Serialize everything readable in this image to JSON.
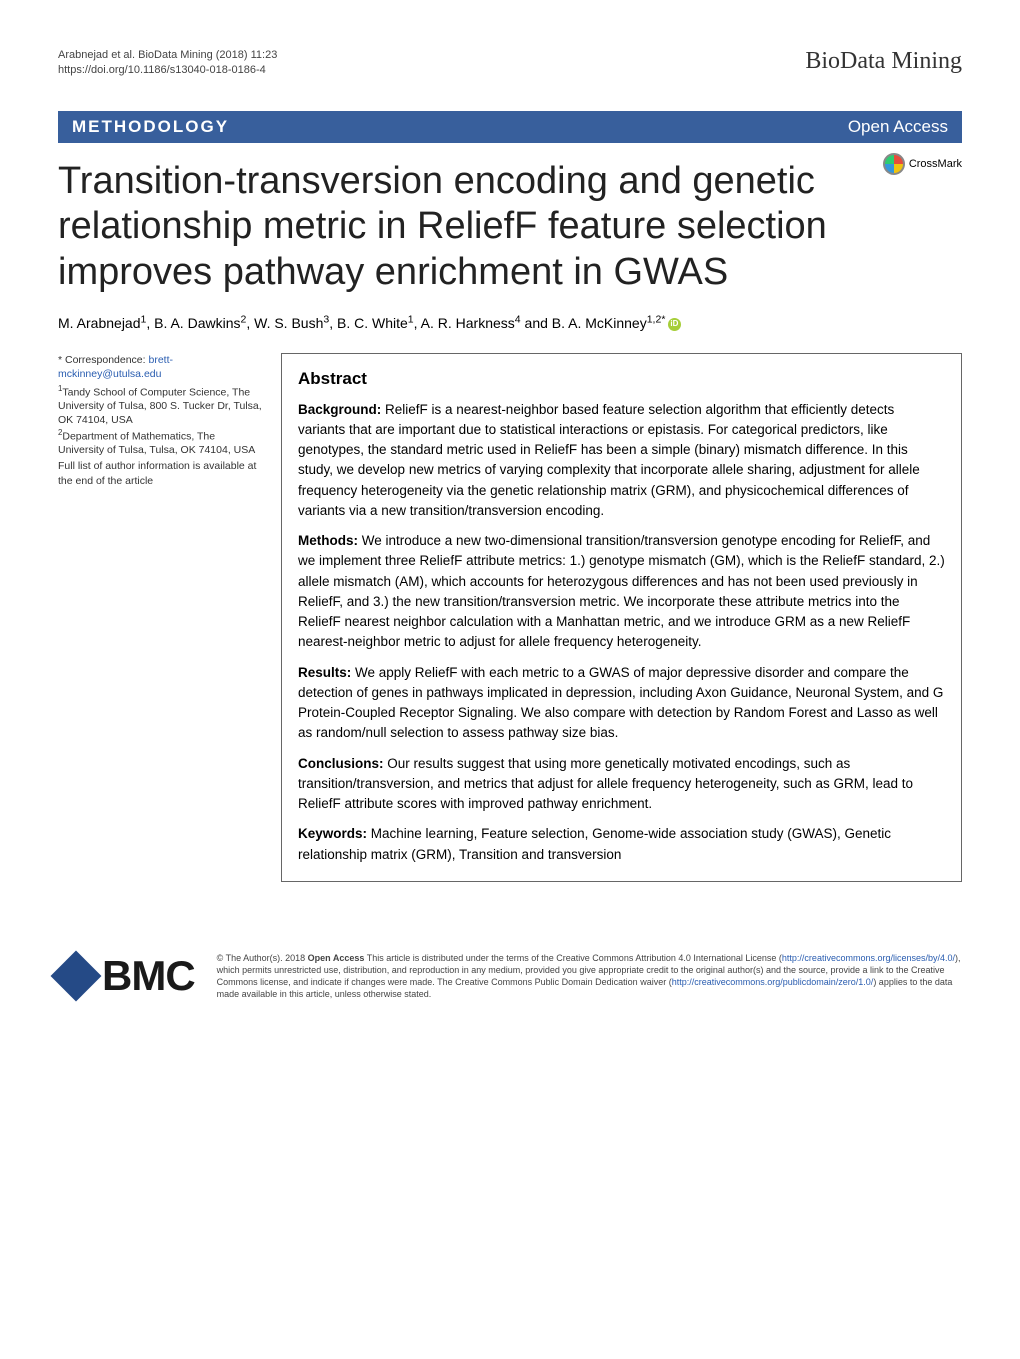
{
  "meta": {
    "citation": "Arabnejad et al. BioData Mining          (2018) 11:23",
    "doi": "https://doi.org/10.1186/s13040-018-0186-4",
    "journal": "BioData Mining"
  },
  "banner": {
    "left": "METHODOLOGY",
    "right": "Open Access"
  },
  "crossmark": "CrossMark",
  "title": "Transition-transversion encoding and genetic relationship metric in ReliefF feature selection improves pathway enrichment in GWAS",
  "authors_html": "M. Arabnejad<sup>1</sup>, B. A. Dawkins<sup>2</sup>, W. S. Bush<sup>3</sup>, B. C. White<sup>1</sup>, A. R. Harkness<sup>4</sup> and B. A. McKinney<sup>1,2*</sup>",
  "leftcol": {
    "correspondence_label": "* Correspondence: ",
    "correspondence_email": "brett-mckinney@utulsa.edu",
    "aff1": "Tandy School of Computer Science, The University of Tulsa, 800 S. Tucker Dr, Tulsa, OK 74104, USA",
    "aff2": "Department of Mathematics, The University of Tulsa, Tulsa, OK 74104, USA",
    "fulllist": "Full list of author information is available at the end of the article"
  },
  "abstract": {
    "heading": "Abstract",
    "background_label": "Background:",
    "background": " ReliefF is a nearest-neighbor based feature selection algorithm that efficiently detects variants that are important due to statistical interactions or epistasis. For categorical predictors, like genotypes, the standard metric used in ReliefF has been a simple (binary) mismatch difference. In this study, we develop new metrics of varying complexity that incorporate allele sharing, adjustment for allele frequency heterogeneity via the genetic relationship matrix (GRM), and physicochemical differences of variants via a new transition/transversion encoding.",
    "methods_label": "Methods:",
    "methods": " We introduce a new two-dimensional transition/transversion genotype encoding for ReliefF, and we implement three ReliefF attribute metrics: 1.) genotype mismatch (GM), which is the ReliefF standard, 2.) allele mismatch (AM), which accounts for heterozygous differences and has not been used previously in ReliefF, and 3.) the new transition/transversion metric. We incorporate these attribute metrics into the ReliefF nearest neighbor calculation with a Manhattan metric, and we introduce GRM as a new ReliefF nearest-neighbor metric to adjust for allele frequency heterogeneity.",
    "results_label": "Results:",
    "results": " We apply ReliefF with each metric to a GWAS of major depressive disorder and compare the detection of genes in pathways implicated in depression, including Axon Guidance, Neuronal System, and G Protein-Coupled Receptor Signaling. We also compare with detection by Random Forest and Lasso as well as random/null selection to assess pathway size bias.",
    "conclusions_label": "Conclusions:",
    "conclusions": " Our results suggest that using more genetically motivated encodings, such as transition/transversion, and metrics that adjust for allele frequency heterogeneity, such as GRM, lead to ReliefF attribute scores with improved pathway enrichment.",
    "keywords_label": "Keywords:",
    "keywords": " Machine learning, Feature selection, Genome-wide association study (GWAS), Genetic relationship matrix (GRM), Transition and transversion"
  },
  "footer": {
    "bmc": "BMC",
    "license_pre": "© The Author(s). 2018 ",
    "license_bold": "Open Access",
    "license_post1": " This article is distributed under the terms of the Creative Commons Attribution 4.0 International License (",
    "license_link1": "http://creativecommons.org/licenses/by/4.0/",
    "license_post2": "), which permits unrestricted use, distribution, and reproduction in any medium, provided you give appropriate credit to the original author(s) and the source, provide a link to the Creative Commons license, and indicate if changes were made. The Creative Commons Public Domain Dedication waiver (",
    "license_link2": "http://creativecommons.org/publicdomain/zero/1.0/",
    "license_post3": ") applies to the data made available in this article, unless otherwise stated."
  }
}
